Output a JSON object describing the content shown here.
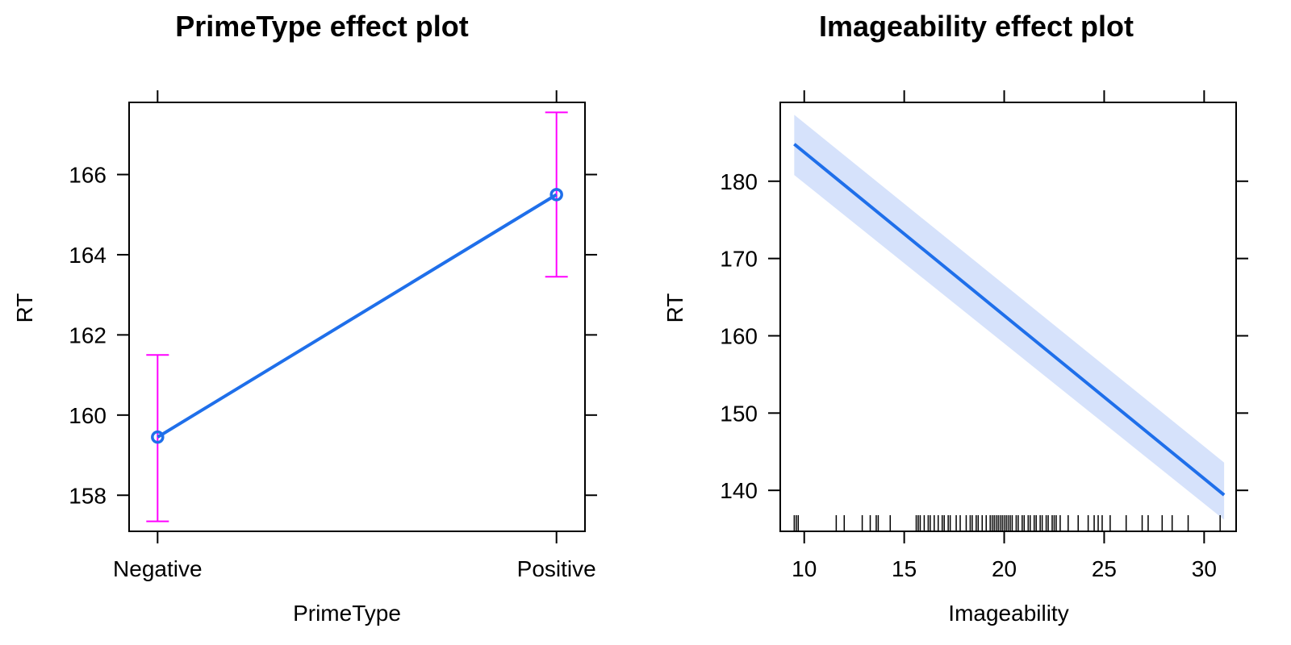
{
  "chart_data": [
    {
      "type": "line",
      "title": "PrimeType effect plot",
      "xlabel": "PrimeType",
      "ylabel": "RT",
      "categories": [
        "Negative",
        "Positive"
      ],
      "series": [
        {
          "values": [
            159.45,
            165.5
          ],
          "lower": [
            157.35,
            163.45
          ],
          "upper": [
            161.5,
            167.55
          ]
        }
      ],
      "ylim": [
        157.1,
        167.8
      ],
      "yticks": [
        158,
        160,
        162,
        164,
        166
      ],
      "grid": false,
      "colors": {
        "line": "#1f6fea",
        "errorbar": "#ff00ff"
      }
    },
    {
      "type": "line",
      "title": "Imageability effect plot",
      "xlabel": "Imageability",
      "ylabel": "RT",
      "x": [
        9.5,
        31
      ],
      "series": [
        {
          "values": [
            184.8,
            139.4
          ],
          "lower": [
            180.8,
            136.2
          ],
          "upper": [
            188.6,
            143.6
          ]
        }
      ],
      "xlim": [
        8.8,
        31.6
      ],
      "xticks": [
        10,
        15,
        20,
        25,
        30
      ],
      "ylim": [
        134.7,
        190.2
      ],
      "yticks": [
        140,
        150,
        160,
        170,
        180
      ],
      "rug": [
        9.5,
        9.6,
        9.7,
        11.6,
        12,
        12.9,
        13.3,
        13.6,
        13.7,
        14.3,
        15.6,
        15.7,
        15.8,
        16,
        16.2,
        16.3,
        16.5,
        16.7,
        16.9,
        17,
        17.2,
        17.3,
        17.6,
        17.8,
        18.1,
        18.3,
        18.4,
        18.6,
        18.7,
        18.9,
        19.1,
        19.3,
        19.4,
        19.5,
        19.6,
        19.7,
        19.8,
        19.9,
        20,
        20.1,
        20.2,
        20.3,
        20.4,
        20.6,
        20.7,
        20.9,
        21,
        21.2,
        21.3,
        21.5,
        21.6,
        21.8,
        21.9,
        22.1,
        22.2,
        22.4,
        22.5,
        22.6,
        22.8,
        23.2,
        23.7,
        24.2,
        24.5,
        24.7,
        24.9,
        25.3,
        26.1,
        26.9,
        27.2,
        27.9,
        28.4,
        29.2,
        30.8
      ],
      "grid": false,
      "colors": {
        "line": "#1f6fea",
        "band": "#d6e2fb"
      }
    }
  ]
}
